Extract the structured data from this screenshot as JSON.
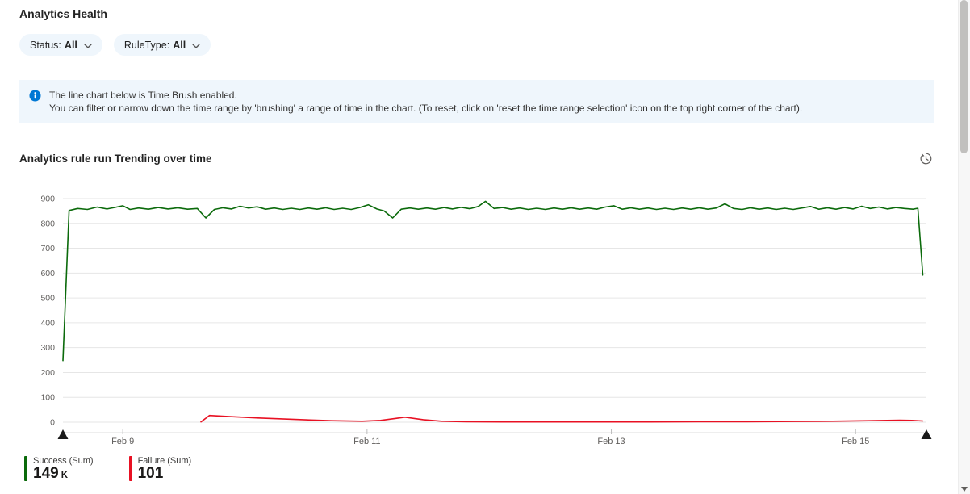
{
  "page": {
    "title": "Analytics Health"
  },
  "filters": [
    {
      "label": "Status:",
      "value": "All"
    },
    {
      "label": "RuleType:",
      "value": "All"
    }
  ],
  "info_banner": {
    "line1": "The line chart below is Time Brush enabled.",
    "line2": "You can filter or narrow down the time range by 'brushing' a range of time in the chart. (To reset, click on 'reset the time range selection' icon on the top right corner of the chart)."
  },
  "chart": {
    "title": "Analytics rule run Trending over time"
  },
  "colors": {
    "success": "#0b6a0b",
    "failure": "#e81123",
    "accent": "#0078d4",
    "grid": "#e6e6e6",
    "axis_text": "#605e5c",
    "brush_handle": "#1a1a1a"
  },
  "chart_data": {
    "type": "line",
    "title": "Analytics rule run Trending over time",
    "x_axis": {
      "range_days": [
        0,
        7.07
      ],
      "tick_positions_days": [
        0.49,
        2.49,
        4.49,
        6.49
      ],
      "tick_labels": [
        "Feb 9",
        "Feb 11",
        "Feb 13",
        "Feb 15"
      ]
    },
    "y_axis": {
      "range": [
        0,
        900
      ],
      "ticks": [
        0,
        100,
        200,
        300,
        400,
        500,
        600,
        700,
        800,
        900
      ]
    },
    "grid": true,
    "legend_position": "bottom-left",
    "brush_enabled": true,
    "series": [
      {
        "name": "Success (Sum)",
        "color": "#0b6a0b",
        "points": [
          [
            0,
            248
          ],
          [
            0.05,
            852
          ],
          [
            0.12,
            860
          ],
          [
            0.2,
            856
          ],
          [
            0.28,
            866
          ],
          [
            0.36,
            858
          ],
          [
            0.42,
            864
          ],
          [
            0.49,
            871
          ],
          [
            0.55,
            856
          ],
          [
            0.62,
            862
          ],
          [
            0.7,
            857
          ],
          [
            0.78,
            864
          ],
          [
            0.86,
            858
          ],
          [
            0.94,
            863
          ],
          [
            1.02,
            857
          ],
          [
            1.1,
            860
          ],
          [
            1.17,
            822
          ],
          [
            1.24,
            856
          ],
          [
            1.31,
            863
          ],
          [
            1.38,
            858
          ],
          [
            1.45,
            869
          ],
          [
            1.52,
            862
          ],
          [
            1.59,
            867
          ],
          [
            1.66,
            857
          ],
          [
            1.73,
            862
          ],
          [
            1.8,
            856
          ],
          [
            1.87,
            861
          ],
          [
            1.94,
            856
          ],
          [
            2.01,
            862
          ],
          [
            2.08,
            857
          ],
          [
            2.15,
            863
          ],
          [
            2.22,
            856
          ],
          [
            2.29,
            861
          ],
          [
            2.36,
            856
          ],
          [
            2.43,
            864
          ],
          [
            2.5,
            875
          ],
          [
            2.57,
            858
          ],
          [
            2.63,
            850
          ],
          [
            2.7,
            822
          ],
          [
            2.77,
            857
          ],
          [
            2.84,
            862
          ],
          [
            2.91,
            857
          ],
          [
            2.98,
            862
          ],
          [
            3.05,
            857
          ],
          [
            3.12,
            864
          ],
          [
            3.19,
            858
          ],
          [
            3.26,
            865
          ],
          [
            3.33,
            859
          ],
          [
            3.4,
            868
          ],
          [
            3.46,
            889
          ],
          [
            3.53,
            860
          ],
          [
            3.6,
            864
          ],
          [
            3.67,
            857
          ],
          [
            3.74,
            862
          ],
          [
            3.81,
            856
          ],
          [
            3.88,
            861
          ],
          [
            3.95,
            856
          ],
          [
            4.02,
            862
          ],
          [
            4.09,
            857
          ],
          [
            4.16,
            863
          ],
          [
            4.23,
            857
          ],
          [
            4.3,
            862
          ],
          [
            4.37,
            857
          ],
          [
            4.44,
            866
          ],
          [
            4.51,
            871
          ],
          [
            4.58,
            857
          ],
          [
            4.65,
            863
          ],
          [
            4.72,
            857
          ],
          [
            4.79,
            862
          ],
          [
            4.86,
            856
          ],
          [
            4.93,
            861
          ],
          [
            5,
            856
          ],
          [
            5.07,
            862
          ],
          [
            5.14,
            857
          ],
          [
            5.21,
            863
          ],
          [
            5.28,
            857
          ],
          [
            5.35,
            862
          ],
          [
            5.42,
            879
          ],
          [
            5.49,
            860
          ],
          [
            5.56,
            856
          ],
          [
            5.63,
            863
          ],
          [
            5.7,
            857
          ],
          [
            5.77,
            862
          ],
          [
            5.84,
            856
          ],
          [
            5.91,
            861
          ],
          [
            5.98,
            856
          ],
          [
            6.05,
            862
          ],
          [
            6.12,
            868
          ],
          [
            6.19,
            857
          ],
          [
            6.26,
            863
          ],
          [
            6.33,
            857
          ],
          [
            6.4,
            864
          ],
          [
            6.47,
            858
          ],
          [
            6.54,
            869
          ],
          [
            6.61,
            860
          ],
          [
            6.68,
            866
          ],
          [
            6.75,
            858
          ],
          [
            6.82,
            864
          ],
          [
            6.89,
            860
          ],
          [
            6.96,
            857
          ],
          [
            7,
            861
          ],
          [
            7.04,
            592
          ]
        ]
      },
      {
        "name": "Failure (Sum)",
        "color": "#e81123",
        "points": [
          [
            1.13,
            1
          ],
          [
            1.2,
            27
          ],
          [
            1.35,
            23
          ],
          [
            1.6,
            17
          ],
          [
            1.9,
            11
          ],
          [
            2.2,
            6
          ],
          [
            2.45,
            4
          ],
          [
            2.6,
            7
          ],
          [
            2.72,
            15
          ],
          [
            2.8,
            20
          ],
          [
            2.95,
            10
          ],
          [
            3.1,
            4
          ],
          [
            3.3,
            2
          ],
          [
            3.6,
            1
          ],
          [
            4,
            1
          ],
          [
            4.4,
            1
          ],
          [
            4.8,
            1
          ],
          [
            5.2,
            2
          ],
          [
            5.6,
            2
          ],
          [
            6,
            3
          ],
          [
            6.3,
            4
          ],
          [
            6.6,
            6
          ],
          [
            6.85,
            8
          ],
          [
            6.95,
            7
          ],
          [
            7.04,
            5
          ]
        ]
      }
    ],
    "legend": [
      {
        "label": "Success (Sum)",
        "value": "149",
        "unit": "K",
        "color": "#0b6a0b"
      },
      {
        "label": "Failure (Sum)",
        "value": "101",
        "unit": "",
        "color": "#e81123"
      }
    ]
  }
}
